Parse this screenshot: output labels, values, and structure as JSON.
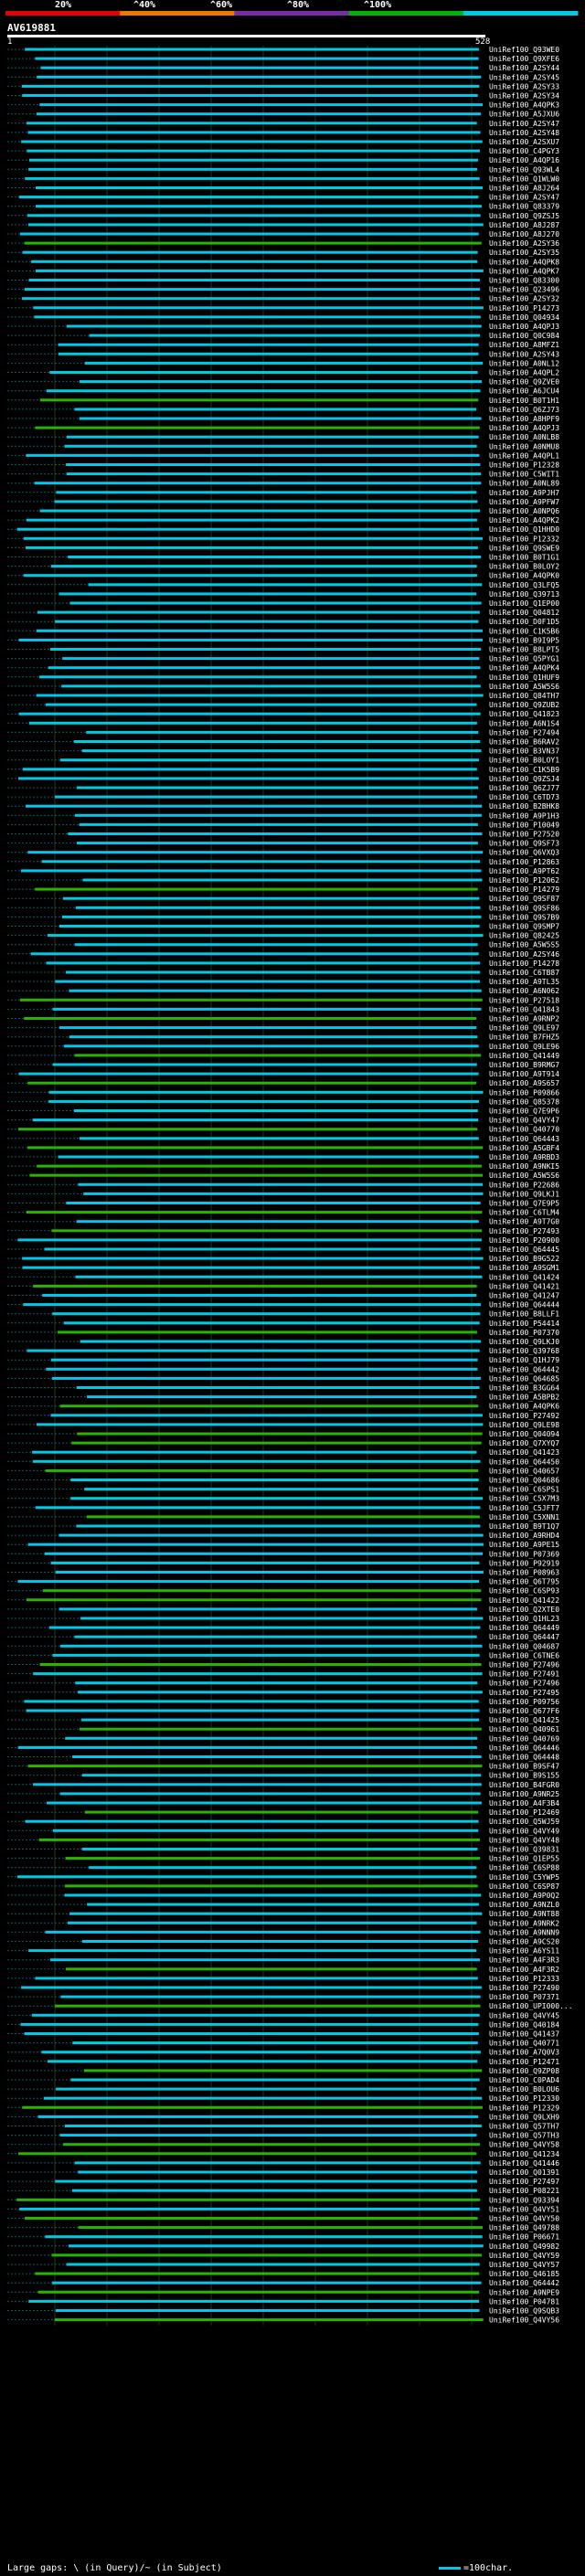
{
  "chart_data": {
    "type": "alignment-overview",
    "query_id": "AV619881",
    "query_length": 528,
    "axis": {
      "start": "1",
      "end": "528"
    },
    "scale_ticks": [
      "20%",
      "^40%",
      "^60%",
      "^80%",
      "^100%"
    ],
    "color_scale": {
      "colors": [
        "#e60000",
        "#f07800",
        "#7d2aa8",
        "#00b400",
        "#00c8e6"
      ],
      "meaning": "percent identity bins"
    },
    "legend": {
      "gaps": "Large gaps: \\ (in Query)/~ (in Subject)",
      "scale": "=100char."
    },
    "hits": [
      "UniRef100_Q93WE0",
      "UniRef100_Q9XFE6",
      "UniRef100_A2SY44",
      "UniRef100_A2SY45",
      "UniRef100_A2SY33",
      "UniRef100_A2SY34",
      "UniRef100_A4QPK3",
      "UniRef100_A5JXU6",
      "UniRef100_A2SY47",
      "UniRef100_A2SY48",
      "UniRef100_A2SXU7",
      "UniRef100_C4PGY3",
      "UniRef100_A4QP16",
      "UniRef100_Q93WL4",
      "UniRef100_Q1WLW0",
      "UniRef100_A8J264",
      "UniRef100_A2SY47",
      "UniRef100_Q83379",
      "UniRef100_Q9ZSJ5",
      "UniRef100_A8J287",
      "UniRef100_A8J270",
      "UniRef100_A2SY36",
      "UniRef100_A2SY35",
      "UniRef100_A4QPK8",
      "UniRef100_A4QPK7",
      "UniRef100_Q83300",
      "UniRef100_Q23496",
      "UniRef100_A2SY32",
      "UniRef100_P14273",
      "UniRef100_Q04934",
      "UniRef100_A4QPJ3",
      "UniRef100_Q0C984",
      "UniRef100_A8MFZ1",
      "UniRef100_A2SY43",
      "UniRef100_A0NL12",
      "UniRef100_A4QPL2",
      "UniRef100_Q9ZVE0",
      "UniRef100_A6JCU4",
      "UniRef100_B0T1H1",
      "UniRef100_Q6ZJ73",
      "UniRef100_A8HPF9",
      "UniRef100_A4QPJ3",
      "UniRef100_A0NLB8",
      "UniRef100_A0NMU8",
      "UniRef100_A4QPL1",
      "UniRef100_P12328",
      "UniRef100_C5WIT1",
      "UniRef100_A0NL89",
      "UniRef100_A9PJH7",
      "UniRef100_A9PFW7",
      "UniRef100_A0NPQ6",
      "UniRef100_A4QPK2",
      "UniRef100_Q1HHD0",
      "UniRef100_P12332",
      "UniRef100_Q9SWE9",
      "UniRef100_B0T1G1",
      "UniRef100_B0LOY2",
      "UniRef100_A4QPK0",
      "UniRef100_Q3LFQ5",
      "UniRef100_Q39713",
      "UniRef100_Q1EP00",
      "UniRef100_Q04812",
      "UniRef100_D0F1D5",
      "UniRef100_C1K5B6",
      "UniRef100_B9I9P5",
      "UniRef100_B8LPT5",
      "UniRef100_Q5PYG1",
      "UniRef100_A4QPK4",
      "UniRef100_Q1HUF9",
      "UniRef100_A5W5S6",
      "UniRef100_Q84TH7",
      "UniRef100_Q9ZUB2",
      "UniRef100_Q41823",
      "UniRef100_A6N1S4",
      "UniRef100_P27494",
      "UniRef100_B6RAV2",
      "UniRef100_B3VN37",
      "UniRef100_B0LOY1",
      "UniRef100_C1K5B9",
      "UniRef100_Q9ZSJ4",
      "UniRef100_Q6ZJ77",
      "UniRef100_C6TD73",
      "UniRef100_B2BHK8",
      "UniRef100_A9P1H3",
      "UniRef100_P10049",
      "UniRef100_P27520",
      "UniRef100_Q9SF73",
      "UniRef100_Q6VXQ3",
      "UniRef100_P12863",
      "UniRef100_A9PT62",
      "UniRef100_P12062",
      "UniRef100_P14279",
      "UniRef100_Q9SF87",
      "UniRef100_Q9SF86",
      "UniRef100_Q9S7B9",
      "UniRef100_Q9SMP7",
      "UniRef100_Q82425",
      "UniRef100_A5W5S5",
      "UniRef100_A2SY46",
      "UniRef100_P14278",
      "UniRef100_C6TB87",
      "UniRef100_A9TL35",
      "UniRef100_A6N062",
      "UniRef100_P27518",
      "UniRef100_Q41843",
      "UniRef100_A9RNP2",
      "UniRef100_Q9LE97",
      "UniRef100_B7FHZ5",
      "UniRef100_Q9LE96",
      "UniRef100_Q41449",
      "UniRef100_B9RMG7",
      "UniRef100_A9T914",
      "UniRef100_A9S657",
      "UniRef100_P09866",
      "UniRef100_Q85378",
      "UniRef100_Q7E9P6",
      "UniRef100_Q4VY47",
      "UniRef100_Q40770",
      "UniRef100_Q64443",
      "UniRef100_A5GBF4",
      "UniRef100_A9RBD3",
      "UniRef100_A9NKI5",
      "UniRef100_A5W5S6",
      "UniRef100_P22686",
      "UniRef100_Q9LKJ1",
      "UniRef100_Q7E9P5",
      "UniRef100_C6TLM4",
      "UniRef100_A9T7G0",
      "UniRef100_P27493",
      "UniRef100_P20900",
      "UniRef100_Q64445",
      "UniRef100_B9G522",
      "UniRef100_A9SGM1",
      "UniRef100_Q41424",
      "UniRef100_Q41421",
      "UniRef100_Q41247",
      "UniRef100_Q64444",
      "UniRef100_B8LLF1",
      "UniRef100_P54414",
      "UniRef100_P07370",
      "UniRef100_Q9LKJ0",
      "UniRef100_Q39768",
      "UniRef100_Q1HJ79",
      "UniRef100_Q64442",
      "UniRef100_Q64685",
      "UniRef100_B3GG64",
      "UniRef100_A5BPB2",
      "UniRef100_A4QPK6",
      "UniRef100_P27492",
      "UniRef100_Q9LE98",
      "UniRef100_Q04094",
      "UniRef100_Q7XYQ7",
      "UniRef100_Q41423",
      "UniRef100_Q64450",
      "UniRef100_Q40657",
      "UniRef100_Q04686",
      "UniRef100_C6SPS1",
      "UniRef100_C5X7M3",
      "UniRef100_C5JFT7",
      "UniRef100_C5XNN1",
      "UniRef100_B9T1Q7",
      "UniRef100_A9RHD4",
      "UniRef100_A9PE15",
      "UniRef100_P07369",
      "UniRef100_P92919",
      "UniRef100_P08963",
      "UniRef100_Q6T795",
      "UniRef100_C6SP93",
      "UniRef100_Q41422",
      "UniRef100_Q2XTE0",
      "UniRef100_Q1HL23",
      "UniRef100_Q64449",
      "UniRef100_Q64447",
      "UniRef100_Q04687",
      "UniRef100_C6TNE6",
      "UniRef100_P27496",
      "UniRef100_P27491",
      "UniRef100_P27496",
      "UniRef100_P27495",
      "UniRef100_P09756",
      "UniRef100_Q677F6",
      "UniRef100_Q41425",
      "UniRef100_Q40961",
      "UniRef100_Q40769",
      "UniRef100_Q64446",
      "UniRef100_Q64448",
      "UniRef100_B9SF47",
      "UniRef100_B9S155",
      "UniRef100_B4FGR0",
      "UniRef100_A9NR25",
      "UniRef100_A4F3B4",
      "UniRef100_P12469",
      "UniRef100_Q5WJ59",
      "UniRef100_Q4VY49",
      "UniRef100_Q4VY48",
      "UniRef100_Q39831",
      "UniRef100_Q1EP55",
      "UniRef100_C6SP88",
      "UniRef100_C5YWP5",
      "UniRef100_C6SP87",
      "UniRef100_A9P0Q2",
      "UniRef100_A9NZL0",
      "UniRef100_A9NT88",
      "UniRef100_A9NRK2",
      "UniRef100_A9NNN9",
      "UniRef100_A9CS20",
      "UniRef100_A6YS11",
      "UniRef100_A4F3R3",
      "UniRef100_A4F3R2",
      "UniRef100_P12333",
      "UniRef100_P27490",
      "UniRef100_P07371",
      "UniRef100_UPI000...",
      "UniRef100_Q4VY45",
      "UniRef100_Q40184",
      "UniRef100_Q41437",
      "UniRef100_Q40771",
      "UniRef100_A7Q0V3",
      "UniRef100_P12471",
      "UniRef100_Q9ZP08",
      "UniRef100_C0PAD4",
      "UniRef100_B0LOU6",
      "UniRef100_P12330",
      "UniRef100_P12329",
      "UniRef100_Q9LXH9",
      "UniRef100_Q57TH7",
      "UniRef100_Q57TH3",
      "UniRef100_Q4VY58",
      "UniRef100_Q41234",
      "UniRef100_Q41446",
      "UniRef100_Q01391",
      "UniRef100_P27497",
      "UniRef100_P08221",
      "UniRef100_Q93394",
      "UniRef100_Q4VY51",
      "UniRef100_Q4VY50",
      "UniRef100_Q49788",
      "UniRef100_P06671",
      "UniRef100_Q49982",
      "UniRef100_Q4VY59",
      "UniRef100_Q4VY57",
      "UniRef100_Q46185",
      "UniRef100_Q64442",
      "UniRef100_A9NPE9",
      "UniRef100_P04781",
      "UniRef100_Q9SQB3",
      "UniRef100_Q4VY56"
    ]
  }
}
